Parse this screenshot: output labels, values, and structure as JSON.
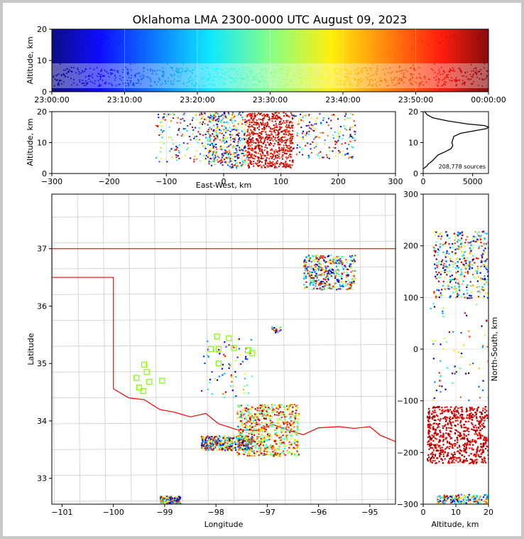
{
  "title": "Oklahoma LMA 2300-0000 UTC August 09, 2023",
  "colors": {
    "background_outer": "#c8c8c8",
    "border_red": "#ff0000",
    "county_lines": "#c8c8c8",
    "station_green": "#7fff00"
  },
  "chart_data": [
    {
      "id": "time_height",
      "type": "scatter",
      "ylabel": "Altitude, km",
      "ylim": [
        0,
        20
      ],
      "yticks": [
        "0",
        "10",
        "20"
      ],
      "xticks": [
        "23:00:00",
        "23:10:00",
        "23:20:00",
        "23:30:00",
        "23:40:00",
        "23:50:00",
        "00:00:00"
      ],
      "colormap": "jet",
      "density": [
        {
          "altitude_km": [
            2,
            8
          ],
          "level": "dense"
        },
        {
          "altitude_km": [
            8,
            20
          ],
          "level": "sparse"
        }
      ]
    },
    {
      "id": "ew_altitude",
      "type": "scatter",
      "xlabel": "East-West, km",
      "ylabel": "Altitude, km",
      "xlim": [
        -300,
        300
      ],
      "ylim": [
        0,
        20
      ],
      "xticks": [
        "−300",
        "−200",
        "−100",
        "0",
        "100",
        "200",
        "300"
      ],
      "yticks": [
        "0",
        "10",
        "20"
      ],
      "clusters": [
        {
          "x_km": [
            -120,
            -10
          ],
          "alt_km": [
            4,
            20
          ],
          "level": "moderate"
        },
        {
          "x_km": [
            -30,
            40
          ],
          "alt_km": [
            2,
            20
          ],
          "level": "dense"
        },
        {
          "x_km": [
            40,
            120
          ],
          "alt_km": [
            2,
            20
          ],
          "level": "very dense"
        },
        {
          "x_km": [
            120,
            230
          ],
          "alt_km": [
            5,
            20
          ],
          "level": "moderate"
        }
      ]
    },
    {
      "id": "altitude_histogram",
      "type": "line",
      "xlim": [
        0,
        6600
      ],
      "ylim": [
        0,
        20
      ],
      "xticks": [
        "0",
        "5000"
      ],
      "yticks": [
        "0",
        "10",
        "20"
      ],
      "annotation": "208,778 sources",
      "series": [
        {
          "alt_km": [
            1.5,
            2,
            2.5,
            3,
            4,
            5,
            6,
            7,
            8,
            9,
            10,
            11,
            12,
            13,
            14,
            14.5,
            15,
            15.5,
            16,
            17,
            18,
            19,
            20
          ],
          "count": [
            0,
            200,
            400,
            500,
            900,
            1200,
            1500,
            2200,
            2800,
            3000,
            2900,
            3000,
            3100,
            3800,
            5500,
            6400,
            6600,
            6200,
            4500,
            2500,
            1000,
            400,
            150
          ]
        }
      ]
    },
    {
      "id": "plan_view",
      "type": "scatter",
      "xlabel": "Longitude",
      "ylabel": "Latitude",
      "xlim": [
        -101.2,
        -94.5
      ],
      "ylim": [
        32.55,
        37.95
      ],
      "xticks": [
        "−101",
        "−100",
        "−99",
        "−98",
        "−97",
        "−96",
        "−95"
      ],
      "yticks": [
        "33",
        "34",
        "35",
        "36",
        "37"
      ],
      "clusters": [
        {
          "lon": [
            -97.6,
            -96.4
          ],
          "lat": [
            33.4,
            34.3
          ],
          "level": "very dense"
        },
        {
          "lon": [
            -98.3,
            -97.3
          ],
          "lat": [
            33.5,
            33.75
          ],
          "level": "dense"
        },
        {
          "lon": [
            -96.3,
            -95.3
          ],
          "lat": [
            36.3,
            36.9
          ],
          "level": "dense"
        },
        {
          "lon": [
            -98.3,
            -97.3
          ],
          "lat": [
            34.4,
            35.5
          ],
          "level": "sparse"
        },
        {
          "lon": [
            -99.1,
            -98.7
          ],
          "lat": [
            32.55,
            32.7
          ],
          "level": "moderate"
        },
        {
          "lon": [
            -96.95,
            -96.75
          ],
          "lat": [
            35.55,
            35.65
          ],
          "level": "small"
        }
      ],
      "stations": [
        {
          "lon": -99.4,
          "lat": 34.98
        },
        {
          "lon": -99.55,
          "lat": 34.75
        },
        {
          "lon": -99.35,
          "lat": 34.85
        },
        {
          "lon": -99.3,
          "lat": 34.68
        },
        {
          "lon": -99.5,
          "lat": 34.58
        },
        {
          "lon": -99.42,
          "lat": 34.52
        },
        {
          "lon": -99.05,
          "lat": 34.7
        },
        {
          "lon": -97.98,
          "lat": 35.47
        },
        {
          "lon": -97.75,
          "lat": 35.44
        },
        {
          "lon": -98.1,
          "lat": 35.25
        },
        {
          "lon": -97.95,
          "lat": 35.25
        },
        {
          "lon": -97.65,
          "lat": 35.27
        },
        {
          "lon": -97.38,
          "lat": 35.23
        },
        {
          "lon": -97.3,
          "lat": 35.18
        },
        {
          "lon": -97.95,
          "lat": 35.0
        }
      ]
    },
    {
      "id": "alt_ns",
      "type": "scatter",
      "xlabel": "Altitude, km",
      "ylabel": "North-South, km",
      "xlim": [
        0,
        20
      ],
      "ylim": [
        -300,
        300
      ],
      "xticks": [
        "0",
        "10",
        "20"
      ],
      "yticks": [
        "−300",
        "−200",
        "−100",
        "0",
        "100",
        "200",
        "300"
      ],
      "clusters": [
        {
          "ns_km": [
            100,
            230
          ],
          "alt_km": [
            3,
            20
          ],
          "level": "dense"
        },
        {
          "ns_km": [
            -220,
            -110
          ],
          "alt_km": [
            1,
            20
          ],
          "level": "very dense"
        },
        {
          "ns_km": [
            -300,
            -280
          ],
          "alt_km": [
            4,
            20
          ],
          "level": "moderate"
        },
        {
          "ns_km": [
            -100,
            90
          ],
          "alt_km": [
            1,
            20
          ],
          "level": "sparse"
        }
      ]
    }
  ]
}
